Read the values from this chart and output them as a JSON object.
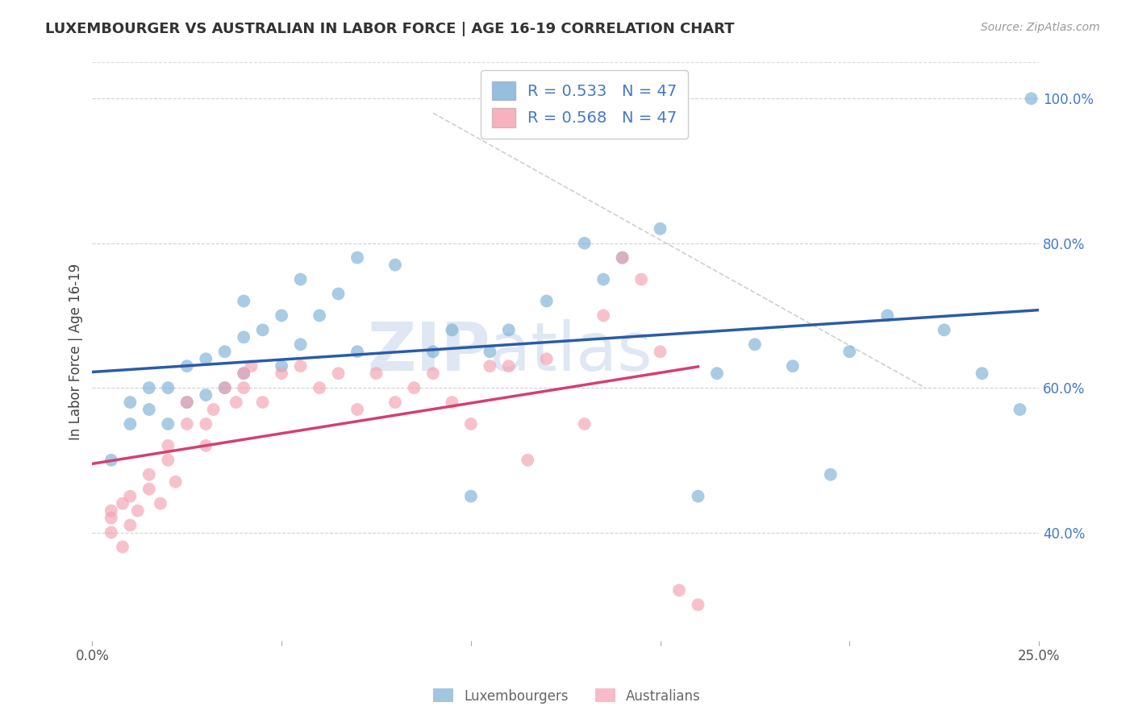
{
  "title": "LUXEMBOURGER VS AUSTRALIAN IN LABOR FORCE | AGE 16-19 CORRELATION CHART",
  "source": "Source: ZipAtlas.com",
  "ylabel": "In Labor Force | Age 16-19",
  "xlim": [
    0.0,
    0.25
  ],
  "ylim": [
    0.25,
    1.05
  ],
  "xticks": [
    0.0,
    0.05,
    0.1,
    0.15,
    0.2,
    0.25
  ],
  "xtick_labels": [
    "0.0%",
    "",
    "",
    "",
    "",
    "25.0%"
  ],
  "yticks_right": [
    0.4,
    0.6,
    0.8,
    1.0
  ],
  "ytick_labels_right": [
    "40.0%",
    "60.0%",
    "80.0%",
    "100.0%"
  ],
  "blue_color": "#7BAFD4",
  "pink_color": "#F4A0B0",
  "blue_line_color": "#2B5BA8",
  "pink_line_color": "#D44070",
  "legend_blue_R": "R = 0.533",
  "legend_blue_N": "N = 47",
  "legend_pink_R": "R = 0.568",
  "legend_pink_N": "N = 47",
  "watermark_zip": "ZIP",
  "watermark_atlas": "atlas",
  "grid_color": "#CCCCCC",
  "background_color": "#FFFFFF",
  "blue_scatter_x": [
    0.005,
    0.01,
    0.01,
    0.015,
    0.015,
    0.02,
    0.02,
    0.025,
    0.025,
    0.03,
    0.03,
    0.035,
    0.035,
    0.04,
    0.04,
    0.04,
    0.045,
    0.05,
    0.05,
    0.055,
    0.055,
    0.06,
    0.065,
    0.07,
    0.07,
    0.08,
    0.09,
    0.095,
    0.1,
    0.105,
    0.11,
    0.12,
    0.13,
    0.135,
    0.14,
    0.15,
    0.16,
    0.165,
    0.175,
    0.185,
    0.195,
    0.2,
    0.21,
    0.225,
    0.235,
    0.245,
    0.248
  ],
  "blue_scatter_y": [
    0.5,
    0.55,
    0.58,
    0.57,
    0.6,
    0.55,
    0.6,
    0.58,
    0.63,
    0.59,
    0.64,
    0.6,
    0.65,
    0.62,
    0.67,
    0.72,
    0.68,
    0.63,
    0.7,
    0.66,
    0.75,
    0.7,
    0.73,
    0.65,
    0.78,
    0.77,
    0.65,
    0.68,
    0.45,
    0.65,
    0.68,
    0.72,
    0.8,
    0.75,
    0.78,
    0.82,
    0.45,
    0.62,
    0.66,
    0.63,
    0.48,
    0.65,
    0.7,
    0.68,
    0.62,
    0.57,
    1.0
  ],
  "pink_scatter_x": [
    0.005,
    0.005,
    0.005,
    0.008,
    0.008,
    0.01,
    0.01,
    0.012,
    0.015,
    0.015,
    0.018,
    0.02,
    0.02,
    0.022,
    0.025,
    0.025,
    0.03,
    0.03,
    0.032,
    0.035,
    0.038,
    0.04,
    0.04,
    0.042,
    0.045,
    0.05,
    0.055,
    0.06,
    0.065,
    0.07,
    0.075,
    0.08,
    0.085,
    0.09,
    0.095,
    0.1,
    0.105,
    0.11,
    0.115,
    0.12,
    0.13,
    0.135,
    0.14,
    0.145,
    0.15,
    0.155,
    0.16
  ],
  "pink_scatter_y": [
    0.4,
    0.42,
    0.43,
    0.38,
    0.44,
    0.41,
    0.45,
    0.43,
    0.46,
    0.48,
    0.44,
    0.5,
    0.52,
    0.47,
    0.55,
    0.58,
    0.52,
    0.55,
    0.57,
    0.6,
    0.58,
    0.6,
    0.62,
    0.63,
    0.58,
    0.62,
    0.63,
    0.6,
    0.62,
    0.57,
    0.62,
    0.58,
    0.6,
    0.62,
    0.58,
    0.55,
    0.63,
    0.63,
    0.5,
    0.64,
    0.55,
    0.7,
    0.78,
    0.75,
    0.65,
    0.32,
    0.3
  ],
  "ref_line_x": [
    0.09,
    0.22
  ],
  "ref_line_y": [
    0.98,
    0.6
  ]
}
